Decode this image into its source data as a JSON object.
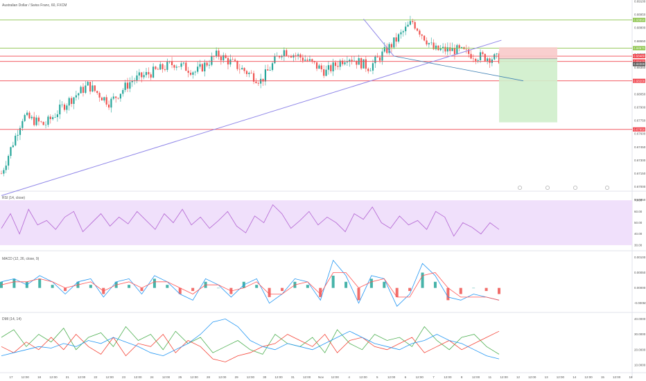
{
  "header": {
    "symbol_title": "Australian Dollar / Swiss Franc, 60, FXCM"
  },
  "panes": {
    "rsi_title": "RSI (14, close)",
    "macd_title": "MACD (12, 26, close, 9)",
    "dmi_title": "DMI (14, 14)"
  },
  "time_axis_labels": [
    "17",
    "12:00",
    "18",
    "12:00",
    "21",
    "12:00",
    "22",
    "12:00",
    "23",
    "12:00",
    "24",
    "12:00",
    "25",
    "12:00",
    "28",
    "12:00",
    "29",
    "12:00",
    "30",
    "12:00",
    "31",
    "12:00",
    "Nov",
    "12:00",
    "4",
    "12:00",
    "5",
    "12:00",
    "6",
    "12:00",
    "7",
    "12:00",
    "8",
    "12:00",
    "11",
    "12:00",
    "12",
    "12:00",
    "13",
    "12:00",
    "14",
    "12:00",
    "15",
    "12:00",
    "18"
  ],
  "colors": {
    "up": "#26a69a",
    "down": "#ef5350",
    "trendline": "#8f86e8",
    "level_green": "#8bc34a",
    "level_red": "#f0444d",
    "rsi_line": "#b86fd6",
    "rsi_band": "#f0e0fb",
    "macd_line": "#2196f3",
    "signal_line": "#ff5252",
    "dmi_plus": "#4caf50",
    "dmi_minus": "#f44336",
    "adx": "#2196f3",
    "sl_zone": "#f8caca",
    "tp_zone": "#cfeecb"
  },
  "chart_data": [
    {
      "type": "candlestick",
      "title": "Australian Dollar / Swiss Franc, 60, FXCM",
      "ylim": [
        0.6695,
        0.691
      ],
      "y_ticks": [
        "0.69100",
        "0.68950",
        "0.68800",
        "0.68650",
        "0.68500",
        "0.68350",
        "0.68200",
        "0.68050",
        "0.67900",
        "0.67750",
        "0.67600",
        "0.67450",
        "0.67300",
        "0.67150",
        "0.67000",
        "0.66850"
      ],
      "candle_count": 214,
      "approx_path": [
        0.6715,
        0.678,
        0.677,
        0.6795,
        0.6815,
        0.6795,
        0.682,
        0.683,
        0.684,
        0.683,
        0.685,
        0.6835,
        0.682,
        0.6855,
        0.6845,
        0.683,
        0.6848,
        0.6835,
        0.686,
        0.6887,
        0.6855,
        0.6855,
        0.6848,
        0.6845
      ],
      "horizontal_levels": [
        {
          "price": 0.6889,
          "color": "green",
          "tag": "0.68890"
        },
        {
          "price": 0.6857,
          "color": "green",
          "tag": "0.68570"
        },
        {
          "price": 0.6848,
          "color": "red",
          "tag": "0.68480"
        },
        {
          "price": 0.6842,
          "color": "red",
          "tag": "0.68420"
        },
        {
          "price": 0.682,
          "color": "red",
          "tag": "0.68200"
        },
        {
          "price": 0.6765,
          "color": "red",
          "tag": "0.67650"
        }
      ],
      "last_price_tag": "0.68389",
      "trendlines": [
        {
          "from": [
            0,
            0.669
          ],
          "to": [
            214,
            0.6866
          ]
        },
        {
          "from": [
            155,
            0.689
          ],
          "to": [
            168,
            0.6848
          ]
        }
      ],
      "position": {
        "type": "short",
        "entry": 0.6845,
        "stop": 0.6858,
        "target": 0.6773
      },
      "event_markers": [
        "economic-event",
        "economic-event",
        "economic-event",
        "economic-event"
      ]
    },
    {
      "type": "line",
      "title": "RSI (14, close)",
      "ylim": [
        25,
        75
      ],
      "y_ticks": [
        "70.00",
        "60.00",
        "50.00",
        "40.00",
        "30.00"
      ],
      "band": [
        30,
        70
      ],
      "values": [
        45,
        58,
        40,
        62,
        48,
        52,
        44,
        55,
        60,
        42,
        50,
        58,
        47,
        55,
        49,
        60,
        52,
        44,
        58,
        50,
        62,
        48,
        55,
        45,
        52,
        60,
        47,
        41,
        56,
        50,
        66,
        58,
        45,
        52,
        60,
        48,
        55,
        50,
        42,
        58,
        53,
        64,
        50,
        45,
        56,
        48,
        52,
        44,
        60,
        55,
        38,
        50,
        46,
        40,
        50,
        44
      ]
    },
    {
      "type": "bar+line",
      "title": "MACD (12, 26, close, 9)",
      "ylim": [
        -0.0008,
        0.0011
      ],
      "y_ticks": [
        "0.00100",
        "0.00050",
        "0.00000",
        "-0.00050"
      ],
      "histogram": [
        0.0002,
        0.0003,
        0.0002,
        0.0003,
        0.0001,
        -0.0001,
        0.0002,
        0.0001,
        -0.0002,
        0.0002,
        0.0001,
        -0.0001,
        0.0003,
        0.0001,
        -0.0002,
        -0.0001,
        0.0002,
        0.0,
        -0.0002,
        0.0002,
        0.0001,
        -0.0003,
        -0.0001,
        0.0002,
        0.0001,
        -0.0003,
        0.0004,
        0.0002,
        -0.0004,
        0.0003,
        0.0002,
        -0.0003,
        -0.0001,
        0.0005,
        0.0002,
        -0.0004,
        -0.0002,
        0.0,
        -0.0001,
        -0.0002
      ],
      "macd": [
        0.0002,
        0.0003,
        0.0001,
        0.0004,
        0.0002,
        -0.0002,
        0.0002,
        0.0003,
        -0.0003,
        0.0002,
        0.0003,
        -0.0002,
        0.0004,
        0.0002,
        -0.0002,
        -0.0004,
        0.0003,
        0.0001,
        -0.0003,
        0.0001,
        0.0003,
        -0.0005,
        -0.0002,
        0.0003,
        0.0002,
        -0.0004,
        0.0009,
        0.0004,
        -0.0005,
        0.0004,
        0.0003,
        -0.0006,
        -0.0002,
        0.0008,
        0.0004,
        -0.0003,
        -0.0004,
        -0.0002,
        -0.0003,
        -0.0004
      ],
      "signal": [
        0.0001,
        0.0002,
        0.0002,
        0.0003,
        0.0002,
        0.0,
        0.0001,
        0.0002,
        -0.0001,
        0.0001,
        0.0002,
        0.0,
        0.0002,
        0.0002,
        0.0,
        -0.0002,
        0.0001,
        0.0001,
        -0.0001,
        0.0,
        0.0002,
        -0.0002,
        -0.0002,
        0.0001,
        0.0002,
        -0.0002,
        0.0005,
        0.0005,
        0.0,
        0.0002,
        0.0003,
        -0.0003,
        -0.0003,
        0.0004,
        0.0005,
        0.0,
        -0.0003,
        -0.0003,
        -0.0003,
        -0.0004
      ]
    },
    {
      "type": "line",
      "title": "DMI (14, 14)",
      "ylim": [
        5,
        42
      ],
      "y_ticks": [
        "40.0000",
        "30.0000",
        "20.0000",
        "10.0000"
      ],
      "series": [
        {
          "name": "+DI",
          "values": [
            28,
            33,
            22,
            30,
            25,
            34,
            20,
            28,
            31,
            22,
            35,
            26,
            30,
            20,
            32,
            24,
            28,
            18,
            22,
            26,
            20,
            17,
            30,
            24,
            22,
            28,
            18,
            33,
            24,
            20,
            30,
            26,
            28,
            22,
            35,
            26,
            20,
            28,
            30,
            22,
            17
          ]
        },
        {
          "name": "-DI",
          "values": [
            22,
            18,
            25,
            20,
            28,
            20,
            30,
            22,
            17,
            28,
            16,
            24,
            22,
            30,
            18,
            26,
            22,
            14,
            12,
            16,
            18,
            22,
            24,
            30,
            26,
            22,
            30,
            18,
            26,
            28,
            22,
            20,
            24,
            28,
            18,
            22,
            26,
            20,
            24,
            28,
            32
          ]
        },
        {
          "name": "ADX",
          "values": [
            16,
            18,
            20,
            22,
            21,
            24,
            22,
            26,
            24,
            28,
            25,
            22,
            18,
            16,
            20,
            24,
            30,
            38,
            40,
            35,
            26,
            22,
            20,
            24,
            22,
            20,
            24,
            28,
            32,
            28,
            24,
            22,
            20,
            24,
            26,
            30,
            26,
            24,
            20,
            16,
            14
          ]
        }
      ]
    }
  ]
}
